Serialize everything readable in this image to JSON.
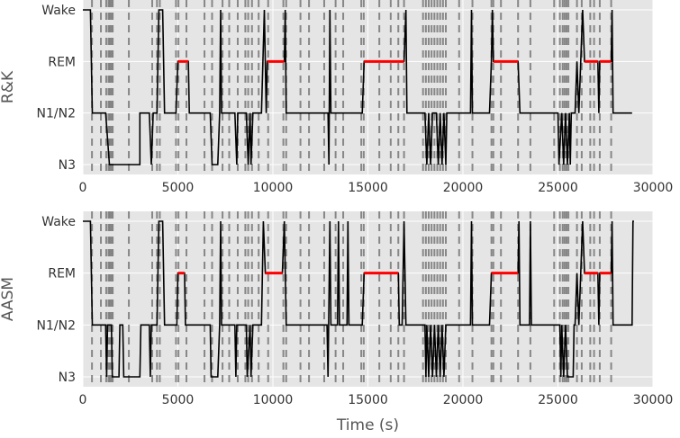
{
  "chart_data": [
    {
      "type": "line",
      "title": "",
      "ylabel": "R&K",
      "xlabel": "",
      "xlim": [
        0,
        30000
      ],
      "xticks": [
        0,
        5000,
        10000,
        15000,
        20000,
        25000,
        30000
      ],
      "y_categories": [
        "N3",
        "N1/N2",
        "REM",
        "Wake"
      ],
      "grid": true,
      "background": "#e5e5e5",
      "line_color": "#000000",
      "rem_color": "#ff0000",
      "marker_color": "#777777",
      "hypnogram": [
        [
          0,
          "Wake"
        ],
        [
          400,
          "Wake"
        ],
        [
          500,
          "N1/N2"
        ],
        [
          1200,
          "N1/N2"
        ],
        [
          1400,
          "N3"
        ],
        [
          1600,
          "N3"
        ],
        [
          3000,
          "N3"
        ],
        [
          3000,
          "N1/N2"
        ],
        [
          3500,
          "N1/N2"
        ],
        [
          3600,
          "N3"
        ],
        [
          3700,
          "N1/N2"
        ],
        [
          3900,
          "N1/N2"
        ],
        [
          4000,
          "Wake"
        ],
        [
          4200,
          "Wake"
        ],
        [
          4300,
          "N1/N2"
        ],
        [
          4900,
          "N1/N2"
        ],
        [
          5000,
          "REM"
        ],
        [
          5550,
          "REM"
        ],
        [
          5600,
          "N1/N2"
        ],
        [
          6700,
          "N1/N2"
        ],
        [
          6800,
          "N3"
        ],
        [
          7100,
          "N3"
        ],
        [
          7200,
          "N1/N2"
        ],
        [
          7250,
          "Wake"
        ],
        [
          7300,
          "N1/N2"
        ],
        [
          8000,
          "N1/N2"
        ],
        [
          8100,
          "N3"
        ],
        [
          8150,
          "N1/N2"
        ],
        [
          8600,
          "N1/N2"
        ],
        [
          8700,
          "N3"
        ],
        [
          8800,
          "N1/N2"
        ],
        [
          8850,
          "N3"
        ],
        [
          8950,
          "N1/N2"
        ],
        [
          9400,
          "N1/N2"
        ],
        [
          9550,
          "Wake"
        ],
        [
          9650,
          "N1/N2"
        ],
        [
          9700,
          "REM"
        ],
        [
          10600,
          "REM"
        ],
        [
          10650,
          "Wake"
        ],
        [
          10700,
          "N1/N2"
        ],
        [
          12900,
          "N1/N2"
        ],
        [
          12950,
          "N3"
        ],
        [
          13000,
          "Wake"
        ],
        [
          13050,
          "N1/N2"
        ],
        [
          14700,
          "N1/N2"
        ],
        [
          14800,
          "REM"
        ],
        [
          16900,
          "REM"
        ],
        [
          17000,
          "Wake"
        ],
        [
          17050,
          "N1/N2"
        ],
        [
          18000,
          "N1/N2"
        ],
        [
          18100,
          "N3"
        ],
        [
          18200,
          "N1/N2"
        ],
        [
          18300,
          "N3"
        ],
        [
          18400,
          "N1/N2"
        ],
        [
          18600,
          "N1/N2"
        ],
        [
          18700,
          "N3"
        ],
        [
          18800,
          "N1/N2"
        ],
        [
          18900,
          "N3"
        ],
        [
          19000,
          "N1/N2"
        ],
        [
          19100,
          "N3"
        ],
        [
          19150,
          "N1/N2"
        ],
        [
          20400,
          "N1/N2"
        ],
        [
          20450,
          "Wake"
        ],
        [
          20500,
          "N1/N2"
        ],
        [
          21400,
          "N1/N2"
        ],
        [
          21500,
          "REM"
        ],
        [
          21550,
          "Wake"
        ],
        [
          21600,
          "REM"
        ],
        [
          22900,
          "REM"
        ],
        [
          23000,
          "N1/N2"
        ],
        [
          25000,
          "N1/N2"
        ],
        [
          25050,
          "N3"
        ],
        [
          25200,
          "N1/N2"
        ],
        [
          25300,
          "N3"
        ],
        [
          25400,
          "N1/N2"
        ],
        [
          25500,
          "N3"
        ],
        [
          25600,
          "N1/N2"
        ],
        [
          25650,
          "N3"
        ],
        [
          25700,
          "N1/N2"
        ],
        [
          25900,
          "N1/N2"
        ],
        [
          26000,
          "REM"
        ],
        [
          26100,
          "N1/N2"
        ],
        [
          26200,
          "REM"
        ],
        [
          26300,
          "Wake"
        ],
        [
          26400,
          "REM"
        ],
        [
          27100,
          "REM"
        ],
        [
          27150,
          "N1/N2"
        ],
        [
          27200,
          "REM"
        ],
        [
          27800,
          "REM"
        ],
        [
          27850,
          "Wake"
        ],
        [
          27900,
          "N1/N2"
        ],
        [
          28900,
          "N1/N2"
        ]
      ]
    },
    {
      "type": "line",
      "title": "",
      "ylabel": "AASM",
      "xlabel": "Time (s)",
      "xlim": [
        0,
        30000
      ],
      "xticks": [
        0,
        5000,
        10000,
        15000,
        20000,
        25000,
        30000
      ],
      "y_categories": [
        "N3",
        "N1/N2",
        "REM",
        "Wake"
      ],
      "grid": true,
      "background": "#e5e5e5",
      "line_color": "#000000",
      "rem_color": "#ff0000",
      "marker_color": "#777777",
      "hypnogram": [
        [
          0,
          "Wake"
        ],
        [
          400,
          "Wake"
        ],
        [
          500,
          "N1/N2"
        ],
        [
          1200,
          "N1/N2"
        ],
        [
          1250,
          "N3"
        ],
        [
          1300,
          "N1/N2"
        ],
        [
          1500,
          "N1/N2"
        ],
        [
          1550,
          "N3"
        ],
        [
          1900,
          "N3"
        ],
        [
          1950,
          "N1/N2"
        ],
        [
          2100,
          "N1/N2"
        ],
        [
          2150,
          "N3"
        ],
        [
          3000,
          "N3"
        ],
        [
          3050,
          "N1/N2"
        ],
        [
          3500,
          "N1/N2"
        ],
        [
          3550,
          "N3"
        ],
        [
          3600,
          "N1/N2"
        ],
        [
          3900,
          "N1/N2"
        ],
        [
          4000,
          "Wake"
        ],
        [
          4200,
          "Wake"
        ],
        [
          4300,
          "N1/N2"
        ],
        [
          4950,
          "N1/N2"
        ],
        [
          5000,
          "REM"
        ],
        [
          5350,
          "REM"
        ],
        [
          5400,
          "N1/N2"
        ],
        [
          6700,
          "N1/N2"
        ],
        [
          6750,
          "N3"
        ],
        [
          7100,
          "N3"
        ],
        [
          7200,
          "N1/N2"
        ],
        [
          7250,
          "Wake"
        ],
        [
          7300,
          "N1/N2"
        ],
        [
          8000,
          "N1/N2"
        ],
        [
          8050,
          "N3"
        ],
        [
          8100,
          "N1/N2"
        ],
        [
          8600,
          "N1/N2"
        ],
        [
          8650,
          "N3"
        ],
        [
          8800,
          "N1/N2"
        ],
        [
          8850,
          "N3"
        ],
        [
          8950,
          "N1/N2"
        ],
        [
          9400,
          "N1/N2"
        ],
        [
          9500,
          "Wake"
        ],
        [
          9600,
          "REM"
        ],
        [
          10500,
          "REM"
        ],
        [
          10600,
          "Wake"
        ],
        [
          10700,
          "N1/N2"
        ],
        [
          12850,
          "N1/N2"
        ],
        [
          12900,
          "N3"
        ],
        [
          13000,
          "Wake"
        ],
        [
          13050,
          "N1/N2"
        ],
        [
          13400,
          "N1/N2"
        ],
        [
          13450,
          "Wake"
        ],
        [
          13500,
          "N1/N2"
        ],
        [
          13900,
          "N1/N2"
        ],
        [
          13950,
          "Wake"
        ],
        [
          14000,
          "N1/N2"
        ],
        [
          14700,
          "N1/N2"
        ],
        [
          14800,
          "REM"
        ],
        [
          16600,
          "REM"
        ],
        [
          16650,
          "N1/N2"
        ],
        [
          16800,
          "N1/N2"
        ],
        [
          16900,
          "Wake"
        ],
        [
          17000,
          "N1/N2"
        ],
        [
          18000,
          "N1/N2"
        ],
        [
          18050,
          "N3"
        ],
        [
          18100,
          "N1/N2"
        ],
        [
          18200,
          "N3"
        ],
        [
          18300,
          "N1/N2"
        ],
        [
          18400,
          "N3"
        ],
        [
          18500,
          "N1/N2"
        ],
        [
          18600,
          "N3"
        ],
        [
          18700,
          "N1/N2"
        ],
        [
          18800,
          "N3"
        ],
        [
          18900,
          "N1/N2"
        ],
        [
          19000,
          "N3"
        ],
        [
          19100,
          "N1/N2"
        ],
        [
          20400,
          "N1/N2"
        ],
        [
          20450,
          "Wake"
        ],
        [
          20500,
          "N1/N2"
        ],
        [
          21400,
          "N1/N2"
        ],
        [
          21500,
          "REM"
        ],
        [
          22900,
          "REM"
        ],
        [
          22950,
          "Wake"
        ],
        [
          23000,
          "N1/N2"
        ],
        [
          23500,
          "N1/N2"
        ],
        [
          23550,
          "Wake"
        ],
        [
          23600,
          "N1/N2"
        ],
        [
          25100,
          "N1/N2"
        ],
        [
          25150,
          "N3"
        ],
        [
          25200,
          "N1/N2"
        ],
        [
          25300,
          "N3"
        ],
        [
          25400,
          "N1/N2"
        ],
        [
          25500,
          "N3"
        ],
        [
          25800,
          "N3"
        ],
        [
          25850,
          "N1/N2"
        ],
        [
          25900,
          "N1/N2"
        ],
        [
          26000,
          "REM"
        ],
        [
          26100,
          "N1/N2"
        ],
        [
          26200,
          "REM"
        ],
        [
          26300,
          "Wake"
        ],
        [
          26400,
          "REM"
        ],
        [
          27100,
          "REM"
        ],
        [
          27150,
          "N1/N2"
        ],
        [
          27200,
          "REM"
        ],
        [
          27800,
          "REM"
        ],
        [
          27850,
          "Wake"
        ],
        [
          27900,
          "N1/N2"
        ],
        [
          28900,
          "N1/N2"
        ],
        [
          28950,
          "Wake"
        ],
        [
          29000,
          "Wake"
        ]
      ]
    }
  ],
  "event_markers": [
    480,
    950,
    1230,
    1350,
    1420,
    1500,
    1570,
    2420,
    3650,
    3900,
    4050,
    4900,
    5030,
    5450,
    6400,
    6800,
    7350,
    7700,
    8150,
    8550,
    8700,
    8900,
    9250,
    9750,
    10550,
    10700,
    11450,
    11900,
    12700,
    13300,
    13700,
    14650,
    14780,
    15600,
    16200,
    16600,
    16900,
    17900,
    18050,
    18200,
    18350,
    18500,
    18650,
    18800,
    18950,
    19100,
    19800,
    20500,
    21500,
    21600,
    22000,
    22900,
    23550,
    24800,
    25100,
    25250,
    25350,
    25450,
    25550,
    26000,
    26250,
    26700,
    26900,
    27200,
    27800
  ]
}
